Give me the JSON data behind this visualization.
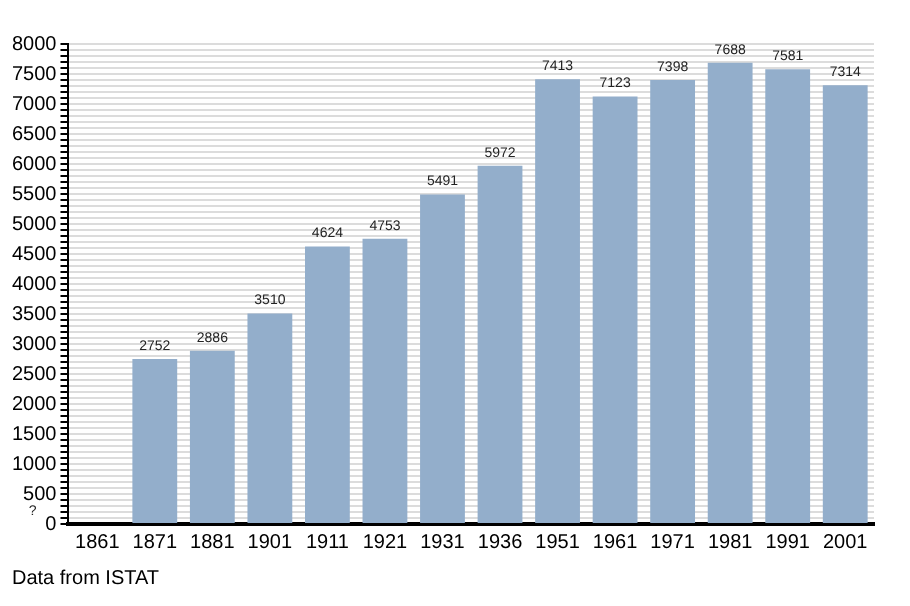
{
  "chart_data": {
    "type": "bar",
    "categories": [
      "1861",
      "1871",
      "1881",
      "1901",
      "1911",
      "1921",
      "1931",
      "1936",
      "1951",
      "1961",
      "1971",
      "1981",
      "1991",
      "2001"
    ],
    "values": [
      null,
      2752,
      2886,
      3510,
      4624,
      4753,
      5491,
      5972,
      7413,
      7123,
      7398,
      7688,
      7581,
      7314
    ],
    "value_labels": [
      "?",
      "2752",
      "2886",
      "3510",
      "4624",
      "4753",
      "5491",
      "5972",
      "7413",
      "7123",
      "7398",
      "7688",
      "7581",
      "7314"
    ],
    "color": "#93aecb",
    "ylim": [
      0,
      8000
    ],
    "yticks": [
      0,
      {
        "value": 100,
        "label": null
      },
      {
        "value": 200,
        "label": null
      },
      {
        "value": 300,
        "label": null
      },
      {
        "value": 400,
        "label": null
      },
      500,
      {
        "value": 600,
        "label": null
      },
      {
        "value": 700,
        "label": null
      },
      {
        "value": 800,
        "label": null
      },
      {
        "value": 900,
        "label": null
      },
      1000,
      {
        "value": 1100,
        "label": null
      },
      {
        "value": 1200,
        "label": null
      },
      {
        "value": 1300,
        "label": null
      },
      {
        "value": 1400,
        "label": null
      },
      1500,
      {
        "value": 1600,
        "label": null
      },
      {
        "value": 1700,
        "label": null
      },
      {
        "value": 1800,
        "label": null
      },
      {
        "value": 1900,
        "label": null
      },
      2000,
      {
        "value": 2100,
        "label": null
      },
      {
        "value": 2200,
        "label": null
      },
      {
        "value": 2300,
        "label": null
      },
      {
        "value": 2400,
        "label": null
      },
      2500,
      {
        "value": 2600,
        "label": null
      },
      {
        "value": 2700,
        "label": null
      },
      {
        "value": 2800,
        "label": null
      },
      {
        "value": 2900,
        "label": null
      },
      3000,
      {
        "value": 3100,
        "label": null
      },
      {
        "value": 3200,
        "label": null
      },
      {
        "value": 3300,
        "label": null
      },
      {
        "value": 3400,
        "label": null
      },
      3500,
      {
        "value": 3600,
        "label": null
      },
      {
        "value": 3700,
        "label": null
      },
      {
        "value": 3800,
        "label": null
      },
      {
        "value": 3900,
        "label": null
      },
      4000,
      {
        "value": 4100,
        "label": null
      },
      {
        "value": 4200,
        "label": null
      },
      {
        "value": 4300,
        "label": null
      },
      {
        "value": 4400,
        "label": null
      },
      4500,
      {
        "value": 4600,
        "label": null
      },
      {
        "value": 4700,
        "label": null
      },
      {
        "value": 4800,
        "label": null
      },
      {
        "value": 4900,
        "label": null
      },
      5000,
      {
        "value": 5100,
        "label": null
      },
      {
        "value": 5200,
        "label": null
      },
      {
        "value": 5300,
        "label": null
      },
      {
        "value": 5400,
        "label": null
      },
      5500,
      {
        "value": 5600,
        "label": null
      },
      {
        "value": 5700,
        "label": null
      },
      {
        "value": 5800,
        "label": null
      },
      {
        "value": 5900,
        "label": null
      },
      6000,
      {
        "value": 6100,
        "label": null
      },
      {
        "value": 6200,
        "label": null
      },
      {
        "value": 6300,
        "label": null
      },
      {
        "value": 6400,
        "label": null
      },
      6500,
      {
        "value": 6600,
        "label": null
      },
      {
        "value": 6700,
        "label": null
      },
      {
        "value": 6800,
        "label": null
      },
      {
        "value": 6900,
        "label": null
      },
      7000,
      {
        "value": 7100,
        "label": null
      },
      {
        "value": 7200,
        "label": null
      },
      {
        "value": 7300,
        "label": null
      },
      {
        "value": 7400,
        "label": null
      },
      7500,
      {
        "value": 7600,
        "label": null
      },
      {
        "value": 7700,
        "label": null
      },
      {
        "value": 7800,
        "label": null
      },
      {
        "value": 7900,
        "label": null
      },
      8000
    ],
    "grid": "y",
    "annotations": [
      "Data from ISTAT"
    ]
  }
}
